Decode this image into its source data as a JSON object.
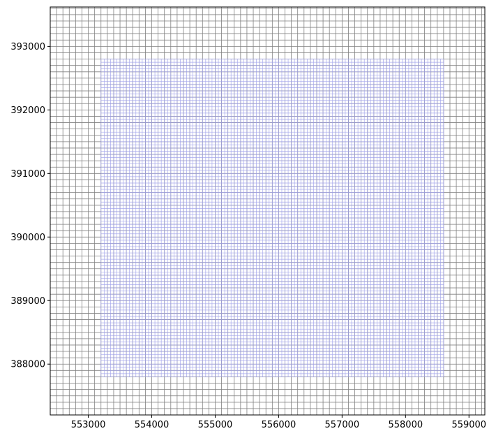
{
  "chart_data": {
    "type": "grid-overlay",
    "title": "",
    "xlabel": "",
    "ylabel": "",
    "xlim": [
      552400,
      559250
    ],
    "ylim": [
      387200,
      393620
    ],
    "xticks": [
      553000,
      554000,
      555000,
      556000,
      557000,
      558000,
      559000
    ],
    "yticks": [
      388000,
      389000,
      390000,
      391000,
      392000,
      393000
    ],
    "xtick_labels": [
      "553000",
      "554000",
      "555000",
      "556000",
      "557000",
      "558000",
      "559000"
    ],
    "ytick_labels": [
      "388000",
      "389000",
      "390000",
      "391000",
      "392000",
      "393000"
    ],
    "grids": [
      {
        "name": "",
        "color": "#808080",
        "x_origin": 552400,
        "y_origin": 387200,
        "cell_size": 100,
        "ncols": 69,
        "nrows": 65
      },
      {
        "name": "",
        "color": "#9da0ea",
        "x_origin": 553200,
        "y_origin": 387800,
        "cell_size": 50,
        "ncols": 108,
        "nrows": 100
      }
    ]
  }
}
